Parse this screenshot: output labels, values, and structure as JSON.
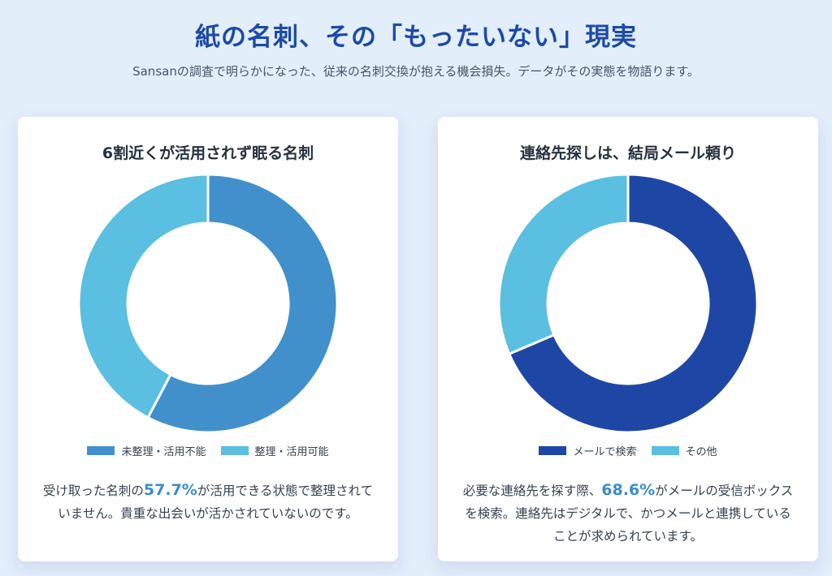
{
  "header": {
    "title": "紙の名刺、その「もったいない」現実",
    "subtitle": "Sansanの調査で明らかになった、従来の名刺交換が抱える機会損失。データがその実態を物語ります。"
  },
  "left_card": {
    "title": "6割近くが活用されず眠る名刺",
    "desc_before": "受け取った名刺の",
    "desc_highlight": "57.7%",
    "desc_after": "が活用できる状態で整理されていません。貴重な出会いが活かされていないのです。"
  },
  "right_card": {
    "title": "連絡先探しは、結局メール頼り",
    "desc_before": "必要な連絡先を探す際、",
    "desc_highlight": "68.6%",
    "desc_after": "がメールの受信ボックスを検索。連絡先はデジタルで、かつメールと連携していることが求められています。"
  },
  "colors": {
    "title": "#1d4aa6",
    "highlight": "#3b8ccd"
  },
  "chart_data": [
    {
      "type": "pie",
      "title": "6割近くが活用されず眠る名刺",
      "donut": true,
      "categories": [
        "未整理・活用不能",
        "整理・活用可能"
      ],
      "values": [
        57.7,
        42.3
      ],
      "colors": [
        "#4190cc",
        "#5abfe0"
      ],
      "legend": "bottom"
    },
    {
      "type": "pie",
      "title": "連絡先探しは、結局メール頼り",
      "donut": true,
      "categories": [
        "メールで検索",
        "その他"
      ],
      "values": [
        68.6,
        31.4
      ],
      "colors": [
        "#1e47a5",
        "#5abfe0"
      ],
      "legend": "bottom"
    }
  ]
}
